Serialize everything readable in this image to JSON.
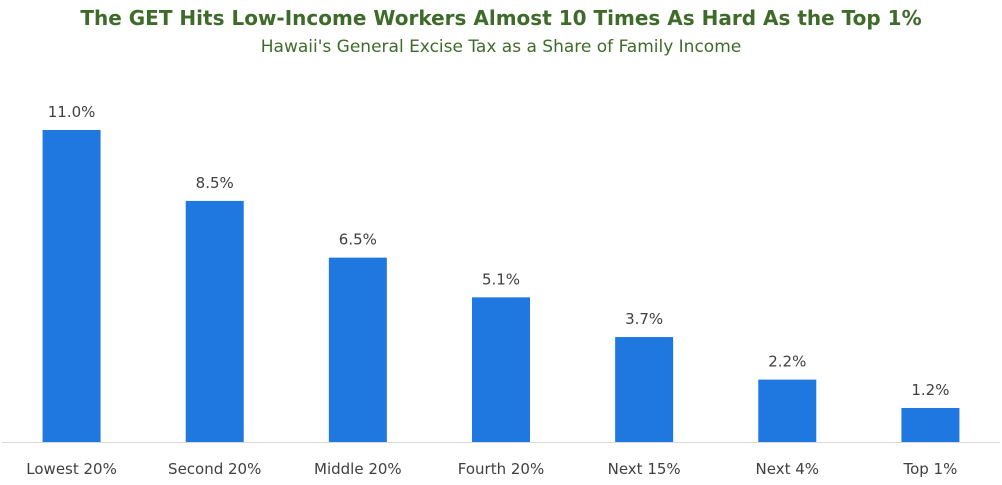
{
  "chart_data": {
    "type": "bar",
    "title": "The GET Hits Low-Income Workers Almost 10 Times As Hard As the Top 1%",
    "subtitle": "Hawaii's General Excise Tax as a Share of Family Income",
    "categories": [
      "Lowest 20%",
      "Second 20%",
      "Middle 20%",
      "Fourth 20%",
      "Next 15%",
      "Next 4%",
      "Top 1%"
    ],
    "values": [
      11.0,
      8.5,
      6.5,
      5.1,
      3.7,
      2.2,
      1.2
    ],
    "data_labels": [
      "11.0%",
      "8.5%",
      "6.5%",
      "5.1%",
      "3.7%",
      "2.2%",
      "1.2%"
    ],
    "xlabel": "",
    "ylabel": "",
    "ylim": [
      0,
      11.0
    ],
    "grid": false,
    "legend": "none",
    "bar_color": "#1f77e0",
    "axis_color": "#d9d9d9",
    "title_color": "#3f6b2a"
  }
}
